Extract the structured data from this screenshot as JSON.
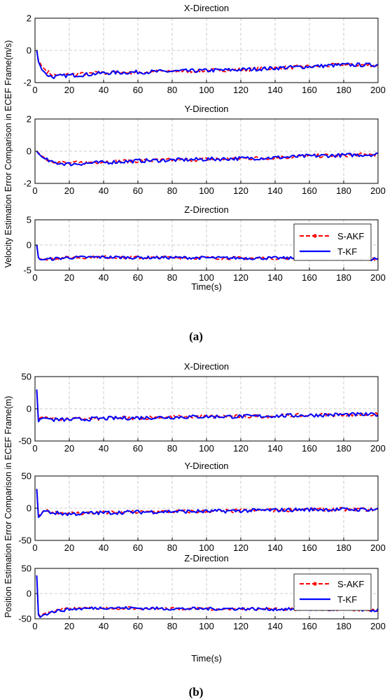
{
  "figures": [
    {
      "caption": "(a)",
      "ylabel": "Velocity Estimation Error Comparison in ECEF Frame(m/s)",
      "xlabel": "Time(s)"
    },
    {
      "caption": "(b)",
      "ylabel": "Position Estimation Error Comparison in ECEF Frame(m)",
      "xlabel": "Time(s)"
    }
  ],
  "legend": {
    "entries": [
      {
        "label": "S-AKF",
        "color": "#ff0000",
        "style": "dashed-dot-markers"
      },
      {
        "label": "T-KF",
        "color": "#0000ff",
        "style": "solid"
      }
    ],
    "placement": "top-right"
  },
  "chart_data": [
    {
      "type": "line",
      "title": "X-Direction",
      "xlim": [
        0,
        200
      ],
      "ylim": [
        -2,
        2
      ],
      "x_ticks": [
        "0",
        "20",
        "40",
        "60",
        "80",
        "100",
        "120",
        "140",
        "160",
        "180",
        "200"
      ],
      "y_ticks": [
        "-2",
        "0",
        "2"
      ],
      "grid": true,
      "series": [
        {
          "name": "S-AKF",
          "x": [
            1,
            2,
            4,
            7,
            10,
            15,
            20,
            30,
            40,
            60,
            80,
            100,
            120,
            140,
            160,
            180,
            200
          ],
          "y": [
            0,
            -0.6,
            -1.0,
            -1.3,
            -1.5,
            -1.55,
            -1.5,
            -1.45,
            -1.4,
            -1.35,
            -1.3,
            -1.25,
            -1.2,
            -1.1,
            -1.0,
            -0.9,
            -0.9
          ]
        },
        {
          "name": "T-KF",
          "x": [
            1,
            2,
            4,
            7,
            10,
            15,
            20,
            30,
            40,
            60,
            80,
            100,
            120,
            140,
            160,
            180,
            200
          ],
          "y": [
            0,
            -0.7,
            -1.2,
            -1.5,
            -1.65,
            -1.6,
            -1.55,
            -1.5,
            -1.4,
            -1.35,
            -1.3,
            -1.25,
            -1.2,
            -1.1,
            -1.0,
            -0.9,
            -0.9
          ]
        }
      ]
    },
    {
      "type": "line",
      "title": "Y-Direction",
      "xlim": [
        0,
        200
      ],
      "ylim": [
        -2,
        2
      ],
      "x_ticks": [
        "0",
        "20",
        "40",
        "60",
        "80",
        "100",
        "120",
        "140",
        "160",
        "180",
        "200"
      ],
      "y_ticks": [
        "-2",
        "0",
        "2"
      ],
      "grid": true,
      "series": [
        {
          "name": "S-AKF",
          "x": [
            1,
            2,
            4,
            7,
            10,
            15,
            20,
            30,
            40,
            60,
            80,
            100,
            120,
            140,
            160,
            180,
            200
          ],
          "y": [
            0,
            -0.1,
            -0.3,
            -0.5,
            -0.6,
            -0.7,
            -0.75,
            -0.7,
            -0.65,
            -0.6,
            -0.55,
            -0.5,
            -0.45,
            -0.4,
            -0.3,
            -0.25,
            -0.2
          ]
        },
        {
          "name": "T-KF",
          "x": [
            1,
            2,
            4,
            7,
            10,
            15,
            20,
            30,
            40,
            60,
            80,
            100,
            120,
            140,
            160,
            180,
            200
          ],
          "y": [
            0,
            -0.15,
            -0.35,
            -0.55,
            -0.7,
            -0.75,
            -0.8,
            -0.75,
            -0.7,
            -0.6,
            -0.55,
            -0.5,
            -0.45,
            -0.4,
            -0.3,
            -0.25,
            -0.2
          ]
        }
      ]
    },
    {
      "type": "line",
      "title": "Z-Direction",
      "xlim": [
        0,
        200
      ],
      "ylim": [
        -5,
        5
      ],
      "x_ticks": [
        "0",
        "20",
        "40",
        "60",
        "80",
        "100",
        "120",
        "140",
        "160",
        "180",
        "200"
      ],
      "y_ticks": [
        "-5",
        "0",
        "5"
      ],
      "grid": true,
      "series": [
        {
          "name": "S-AKF",
          "x": [
            1,
            2,
            3,
            5,
            10,
            20,
            40,
            60,
            80,
            100,
            120,
            140,
            160,
            180,
            200
          ],
          "y": [
            0,
            -2.5,
            -2.8,
            -2.8,
            -2.7,
            -2.5,
            -2.4,
            -2.5,
            -2.5,
            -2.55,
            -2.6,
            -2.6,
            -2.65,
            -2.7,
            -2.8
          ]
        },
        {
          "name": "T-KF",
          "x": [
            1,
            2,
            3,
            5,
            10,
            20,
            40,
            60,
            80,
            100,
            120,
            140,
            160,
            180,
            200
          ],
          "y": [
            0,
            -2.5,
            -2.9,
            -2.9,
            -2.75,
            -2.5,
            -2.4,
            -2.5,
            -2.5,
            -2.55,
            -2.6,
            -2.6,
            -2.65,
            -2.7,
            -2.8
          ]
        }
      ]
    },
    {
      "type": "line",
      "title": "X-Direction",
      "xlim": [
        0,
        200
      ],
      "ylim": [
        -50,
        50
      ],
      "x_ticks": [
        "0",
        "20",
        "40",
        "60",
        "80",
        "100",
        "120",
        "140",
        "160",
        "180",
        "200"
      ],
      "y_ticks": [
        "-50",
        "0",
        "50"
      ],
      "grid": true,
      "series": [
        {
          "name": "S-AKF",
          "x": [
            1,
            2,
            3,
            5,
            10,
            20,
            40,
            60,
            80,
            100,
            120,
            140,
            160,
            180,
            200
          ],
          "y": [
            30,
            -17,
            -14,
            -12,
            -15,
            -16,
            -15,
            -14,
            -13,
            -12,
            -12,
            -11,
            -10,
            -9,
            -9
          ]
        },
        {
          "name": "T-KF",
          "x": [
            1,
            2,
            3,
            5,
            10,
            20,
            40,
            60,
            80,
            100,
            120,
            140,
            160,
            180,
            200
          ],
          "y": [
            30,
            -20,
            -16,
            -14,
            -17,
            -17,
            -15,
            -14,
            -13,
            -12,
            -12,
            -11,
            -10,
            -9,
            -9
          ]
        }
      ]
    },
    {
      "type": "line",
      "title": "Y-Direction",
      "xlim": [
        0,
        200
      ],
      "ylim": [
        -50,
        50
      ],
      "x_ticks": [
        "0",
        "20",
        "40",
        "60",
        "80",
        "100",
        "120",
        "140",
        "160",
        "180",
        "200"
      ],
      "y_ticks": [
        "-50",
        "0",
        "50"
      ],
      "grid": true,
      "series": [
        {
          "name": "S-AKF",
          "x": [
            1,
            2,
            3,
            5,
            10,
            20,
            40,
            60,
            80,
            100,
            120,
            140,
            160,
            180,
            200
          ],
          "y": [
            30,
            -12,
            -10,
            -4,
            -6,
            -8,
            -7,
            -6,
            -5,
            -5,
            -4,
            -3,
            -2,
            -2,
            -2
          ]
        },
        {
          "name": "T-KF",
          "x": [
            1,
            2,
            3,
            5,
            10,
            20,
            40,
            60,
            80,
            100,
            120,
            140,
            160,
            180,
            200
          ],
          "y": [
            30,
            -14,
            -12,
            -4,
            -7,
            -9,
            -7,
            -6,
            -5,
            -5,
            -4,
            -3,
            -2,
            -2,
            -2
          ]
        }
      ]
    },
    {
      "type": "line",
      "title": "Z-Direction",
      "xlim": [
        0,
        200
      ],
      "ylim": [
        -50,
        50
      ],
      "x_ticks": [
        "0",
        "20",
        "40",
        "60",
        "80",
        "100",
        "120",
        "140",
        "160",
        "180",
        "200"
      ],
      "y_ticks": [
        "-50",
        "0",
        "50"
      ],
      "grid": true,
      "series": [
        {
          "name": "S-AKF",
          "x": [
            1,
            2,
            3,
            5,
            10,
            20,
            40,
            60,
            80,
            100,
            120,
            140,
            160,
            180,
            200
          ],
          "y": [
            36,
            -40,
            -45,
            -40,
            -35,
            -30,
            -28,
            -29,
            -30,
            -30,
            -30,
            -31,
            -31,
            -32,
            -33
          ]
        },
        {
          "name": "T-KF",
          "x": [
            1,
            2,
            3,
            5,
            10,
            20,
            40,
            60,
            80,
            100,
            120,
            140,
            160,
            180,
            200
          ],
          "y": [
            36,
            -42,
            -47,
            -42,
            -36,
            -31,
            -28,
            -29,
            -30,
            -30,
            -30,
            -31,
            -31,
            -32,
            -33
          ]
        }
      ]
    }
  ]
}
